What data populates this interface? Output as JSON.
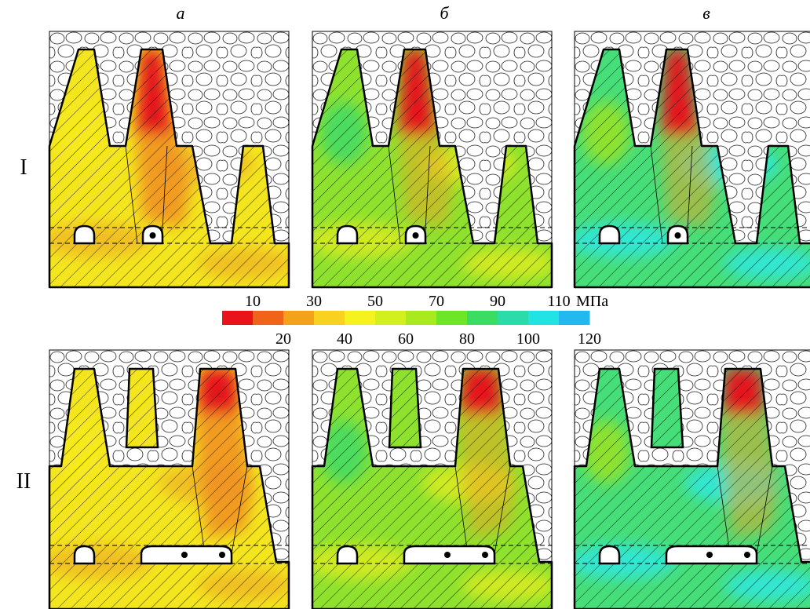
{
  "columns": [
    "а",
    "б",
    "в"
  ],
  "rows": [
    "I",
    "II"
  ],
  "colorbar": {
    "lim": [
      0,
      120
    ],
    "ticks_top": [
      10,
      30,
      50,
      70,
      90,
      110
    ],
    "ticks_bottom": [
      20,
      40,
      60,
      80,
      100,
      120
    ],
    "unit": "МПа",
    "colors": [
      "#e8141a",
      "#f0641a",
      "#f4a21c",
      "#f8d21e",
      "#f6f21e",
      "#d2f01e",
      "#a8ea1e",
      "#6ee628",
      "#3adc62",
      "#2cdca8",
      "#20e4e4",
      "#22b8f0"
    ]
  }
}
